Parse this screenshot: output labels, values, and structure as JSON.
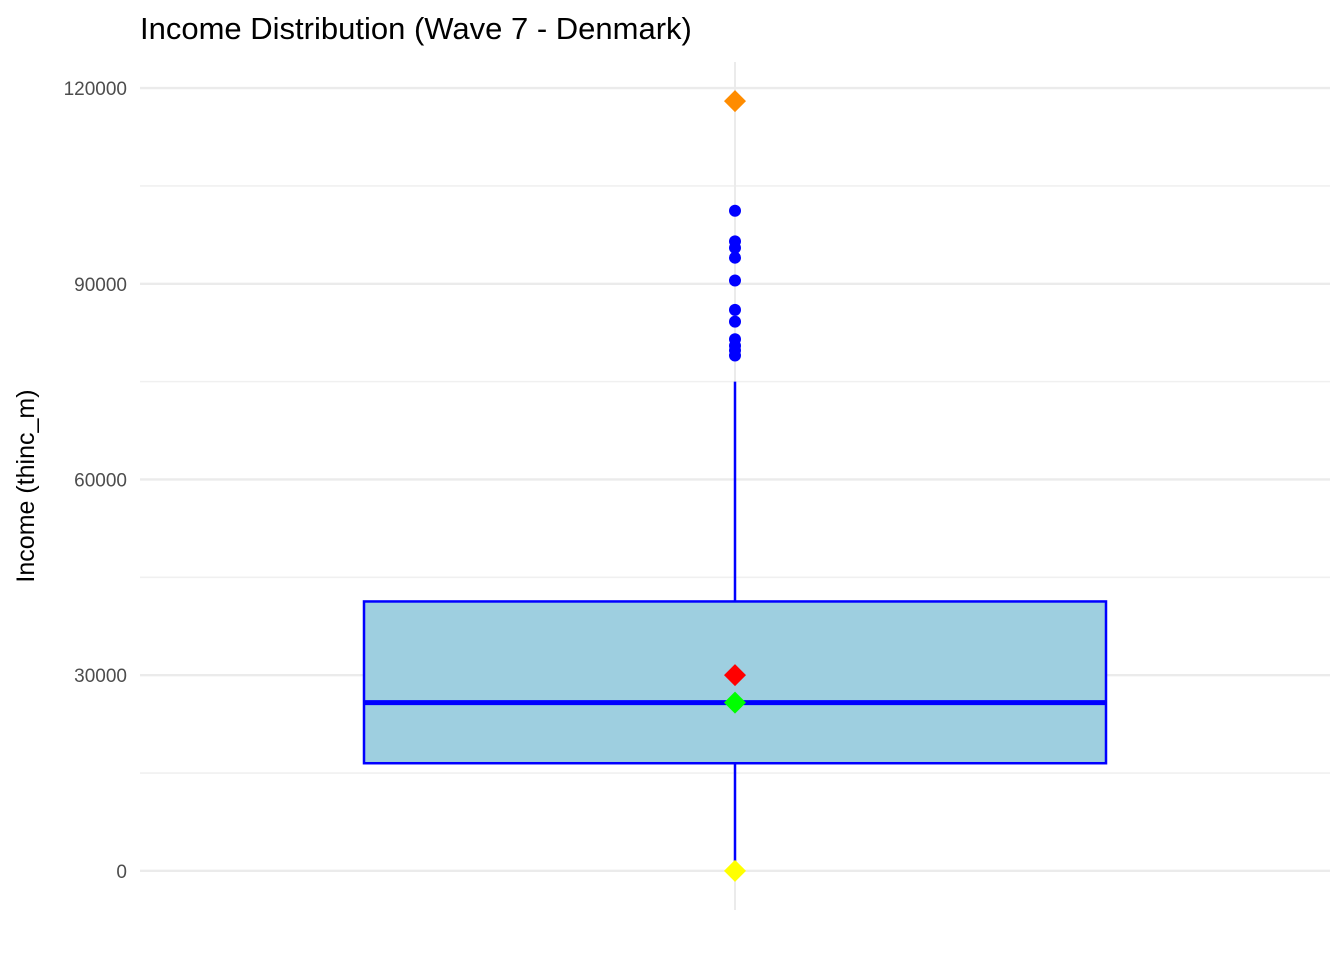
{
  "chart_data": {
    "type": "boxplot",
    "title": "Income Distribution (Wave 7 - Denmark)",
    "xlabel": "",
    "ylabel": "Income (thinc_m)",
    "ylim": [
      -6000,
      124000
    ],
    "yticks": [
      0,
      30000,
      60000,
      90000,
      120000
    ],
    "ytick_labels": [
      "0",
      "30000",
      "60000",
      "90000",
      "120000"
    ],
    "grid": true,
    "box": {
      "q1": 16500,
      "median": 25800,
      "q3": 41300,
      "whisker_low": 0,
      "whisker_high": 75000,
      "fill": "#9ecfe0",
      "line": "#0000ff"
    },
    "outliers": [
      79000,
      79800,
      80500,
      81500,
      84200,
      86000,
      90500,
      94000,
      95500,
      96500,
      101200
    ],
    "outlier_color": "#0000ff",
    "markers": [
      {
        "value": 118000,
        "color": "#ff8c00",
        "shape": "diamond"
      },
      {
        "value": 30000,
        "color": "#ff0000",
        "shape": "diamond"
      },
      {
        "value": 25800,
        "color": "#00ff00",
        "shape": "diamond"
      },
      {
        "value": 0,
        "color": "#ffff00",
        "shape": "diamond"
      }
    ]
  }
}
